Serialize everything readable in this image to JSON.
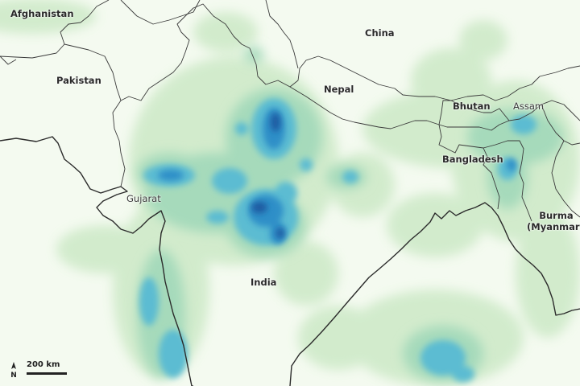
{
  "map": {
    "labels": {
      "afghanistan": "Afghanistan",
      "pakistan": "Pakistan",
      "china": "China",
      "nepal": "Nepal",
      "bhutan": "Bhutan",
      "assam": "Assam",
      "bangladesh": "Bangladesh",
      "gujarat": "Gujarat",
      "india": "India",
      "burma": "Burma",
      "myanmar": "(Myanmar)"
    },
    "scale_bar": "200 km",
    "north_arrow": "N",
    "colors": {
      "background": "#f4faf0",
      "rain_light": "#c9e8c3",
      "rain_medium": "#a4d8ba",
      "rain_heavy": "#5cbcd2",
      "rain_very_heavy": "#2f8fc8",
      "rain_extreme": "#1f5aa0",
      "borders": "#2b2b2b"
    }
  }
}
